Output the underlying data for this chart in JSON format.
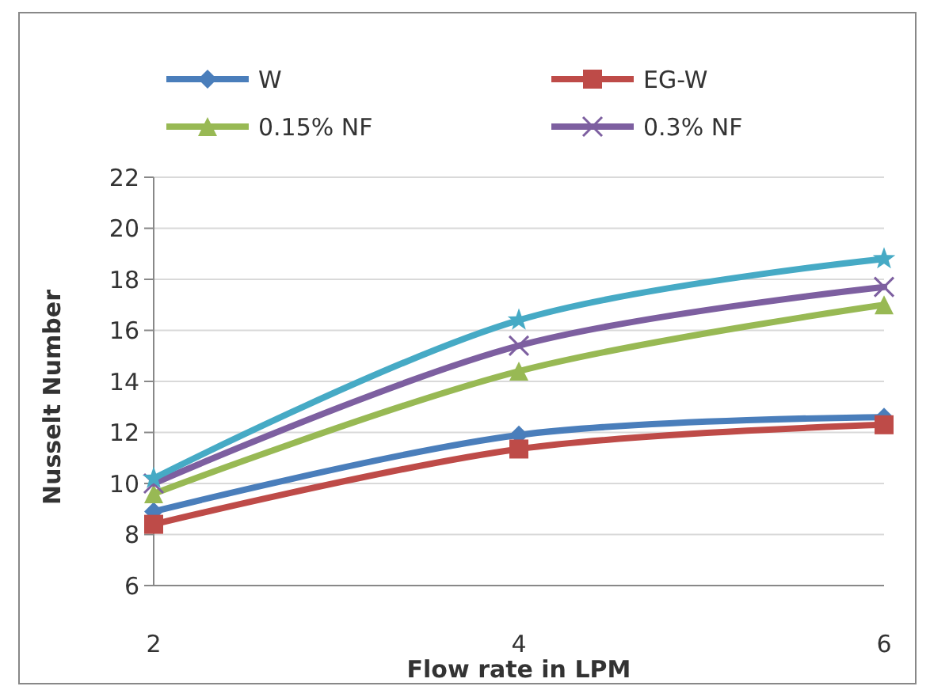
{
  "chart_data": {
    "type": "line",
    "xlabel": "Flow rate in LPM",
    "ylabel": "Nusselt Number",
    "x": [
      2,
      4,
      6
    ],
    "xlim": [
      2,
      6
    ],
    "xticks": [
      2,
      4,
      6
    ],
    "ylim": [
      6,
      22
    ],
    "yticks": [
      6,
      8,
      10,
      12,
      14,
      16,
      18,
      20,
      22
    ],
    "grid": "y",
    "legend": "top",
    "line_style": "solid",
    "series": [
      {
        "name": "W",
        "color": "#4a7ebb",
        "marker": "diamond",
        "values": [
          8.9,
          11.9,
          12.6
        ]
      },
      {
        "name": "EG-W",
        "color": "#be4b48",
        "marker": "square",
        "values": [
          8.4,
          11.35,
          12.3
        ]
      },
      {
        "name": "0.15% NF",
        "color": "#98b954",
        "marker": "triangle",
        "values": [
          9.6,
          14.4,
          17.0
        ]
      },
      {
        "name": "0.3% NF",
        "color": "#7d5fa0",
        "marker": "cross",
        "values": [
          10.0,
          15.4,
          17.7
        ]
      },
      {
        "color": "#46aac5",
        "marker": "star",
        "values": [
          10.2,
          16.4,
          18.8
        ]
      }
    ]
  }
}
